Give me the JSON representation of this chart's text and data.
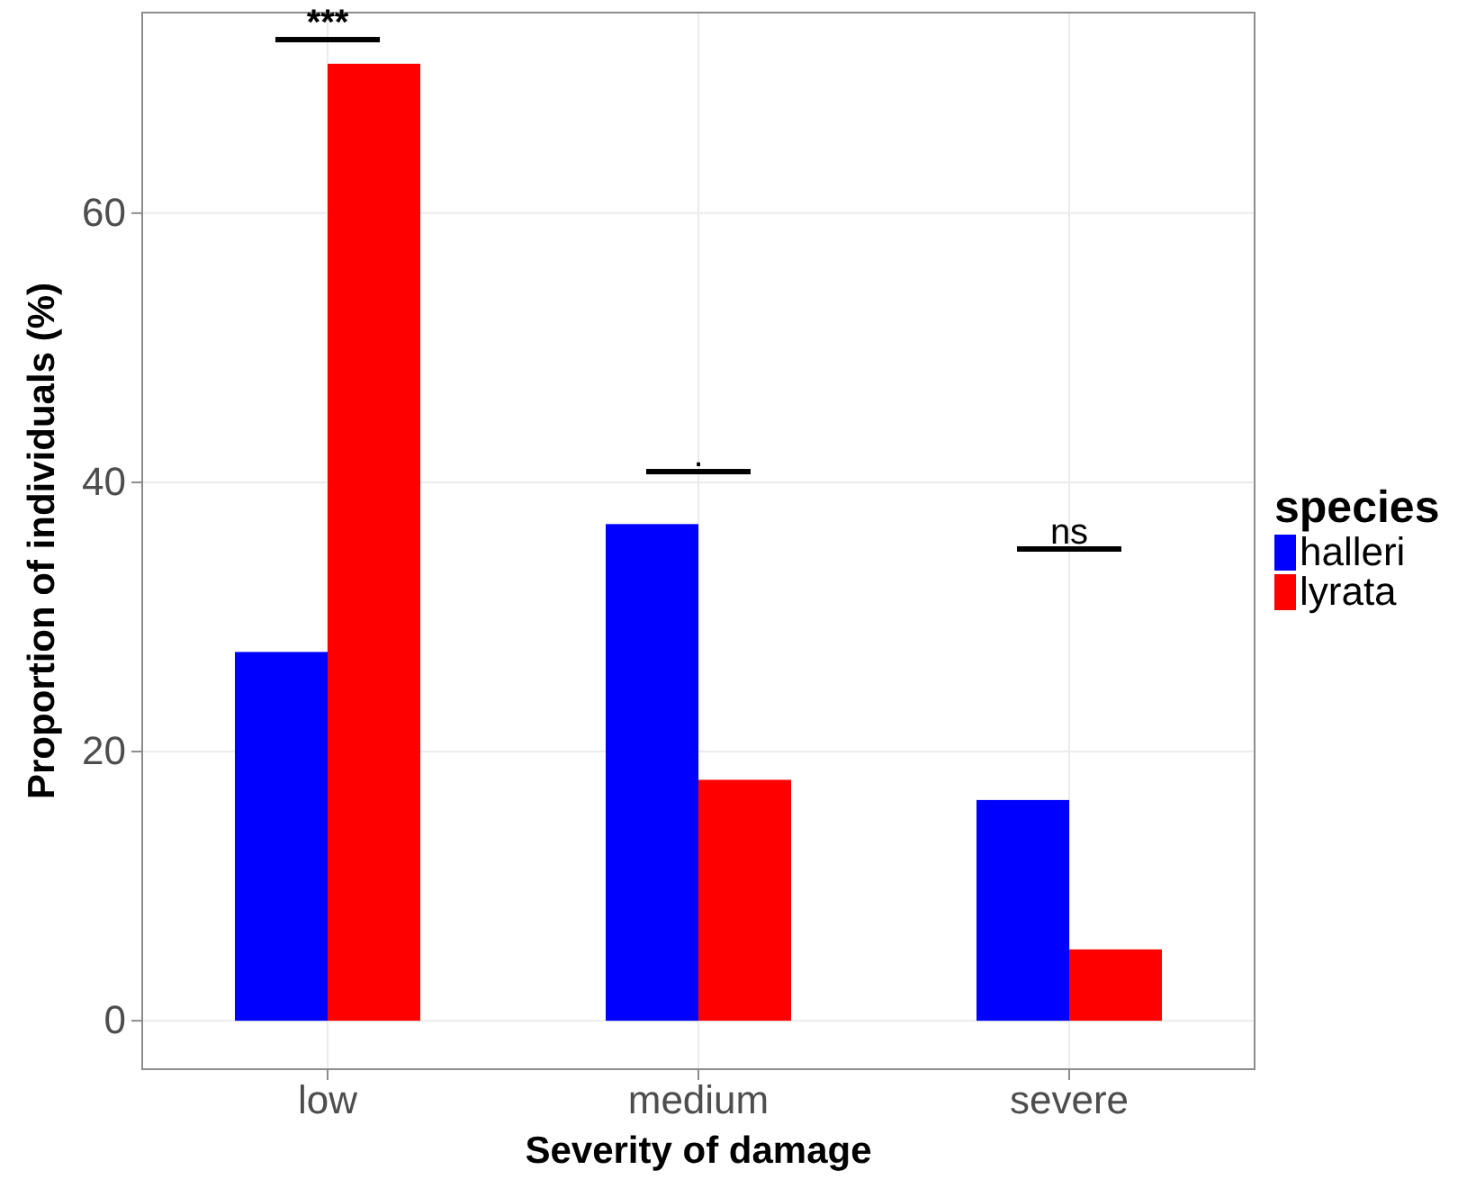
{
  "chart_data": {
    "type": "bar",
    "xlabel": "Severity of damage",
    "ylabel": "Proportion of individuals (%)",
    "legend_title": "species",
    "categories": [
      "low",
      "medium",
      "severe"
    ],
    "series": [
      {
        "name": "halleri",
        "color": "#0000ff",
        "values": [
          27.4,
          36.9,
          16.4
        ]
      },
      {
        "name": "lyrata",
        "color": "#ff0000",
        "values": [
          71.1,
          17.9,
          5.3
        ]
      }
    ],
    "ylim": [
      -3.6,
      74.9
    ],
    "yticks": [
      0,
      20,
      40,
      60
    ],
    "grid": true,
    "legend": "right",
    "annotations": [
      "***",
      ".",
      "ns"
    ]
  }
}
